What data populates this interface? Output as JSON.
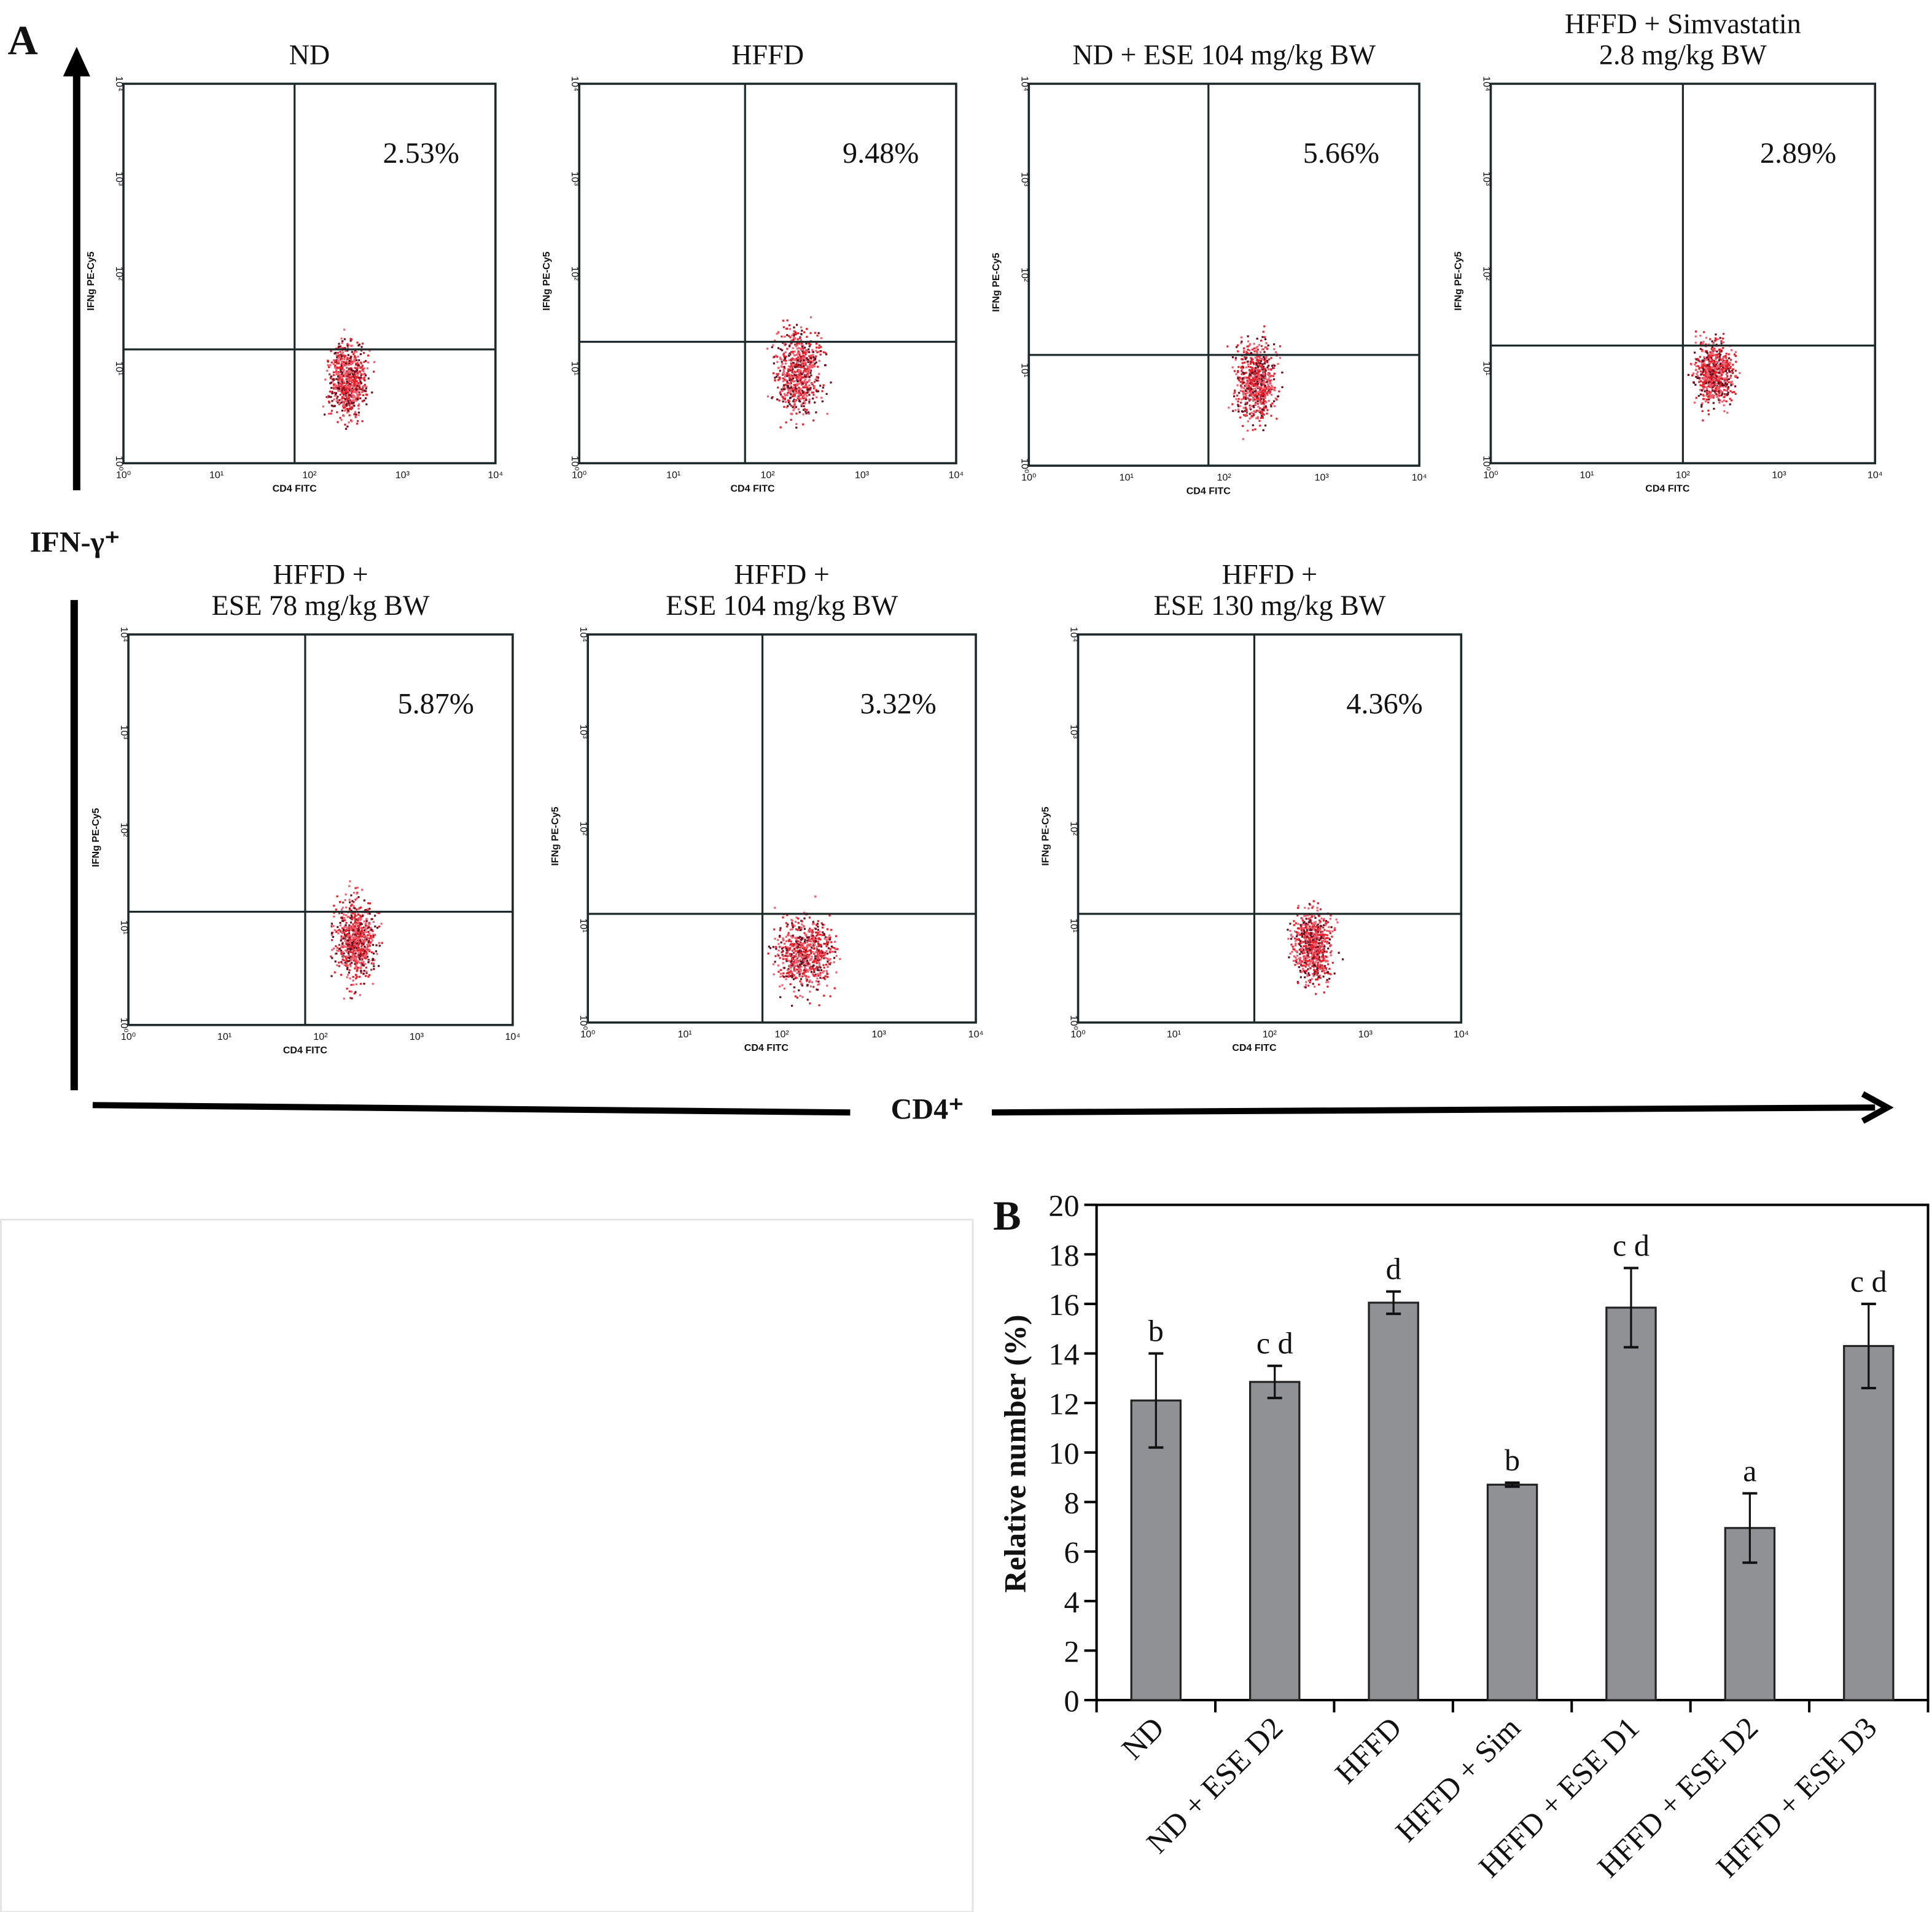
{
  "panel_a": {
    "label": "A",
    "y_axis_label": "IFN-γ⁺",
    "x_axis_label": "CD4⁺",
    "plot_x_axis_label": "CD4 FITC",
    "plot_y_axis_label": "IFNg PE-Cy5",
    "tick_labels": [
      "10⁰",
      "10¹",
      "10²",
      "10³",
      "10⁴"
    ],
    "plots": [
      {
        "title": [
          "ND"
        ],
        "percent": "2.53%"
      },
      {
        "title": [
          "HFFD"
        ],
        "percent": "9.48%"
      },
      {
        "title": [
          "ND + ESE 104 mg/kg BW"
        ],
        "percent": "5.66%"
      },
      {
        "title": [
          "HFFD + Simvastatin",
          "2.8 mg/kg BW"
        ],
        "percent": "2.89%"
      },
      {
        "title": [
          "HFFD +",
          "ESE 78 mg/kg BW"
        ],
        "percent": "5.87%"
      },
      {
        "title": [
          "HFFD +",
          "ESE 104 mg/kg BW"
        ],
        "percent": "3.32%"
      },
      {
        "title": [
          "HFFD +",
          "ESE 130 mg/kg BW"
        ],
        "percent": "4.36%"
      }
    ]
  },
  "chart_data": {
    "type": "bar",
    "label": "B",
    "ylabel": "Relative number (%)",
    "xlabel": "",
    "ylim": [
      0,
      20
    ],
    "yticks": [
      0,
      2,
      4,
      6,
      8,
      10,
      12,
      14,
      16,
      18,
      20
    ],
    "categories": [
      "ND",
      "ND + ESE D2",
      "HFFD",
      "HFFD + Sim",
      "HFFD + ESE D1",
      "HFFD + ESE D2",
      "HFFD + ESE D3"
    ],
    "values": [
      12.1,
      12.85,
      16.05,
      8.7,
      15.85,
      6.95,
      14.3
    ],
    "errors": [
      1.9,
      0.65,
      0.45,
      0.08,
      1.6,
      1.4,
      1.7
    ],
    "significance": [
      "b",
      "c d",
      "d",
      "b",
      "c d",
      "a",
      "c d"
    ],
    "bar_color": "#8f9194",
    "grid": false
  }
}
